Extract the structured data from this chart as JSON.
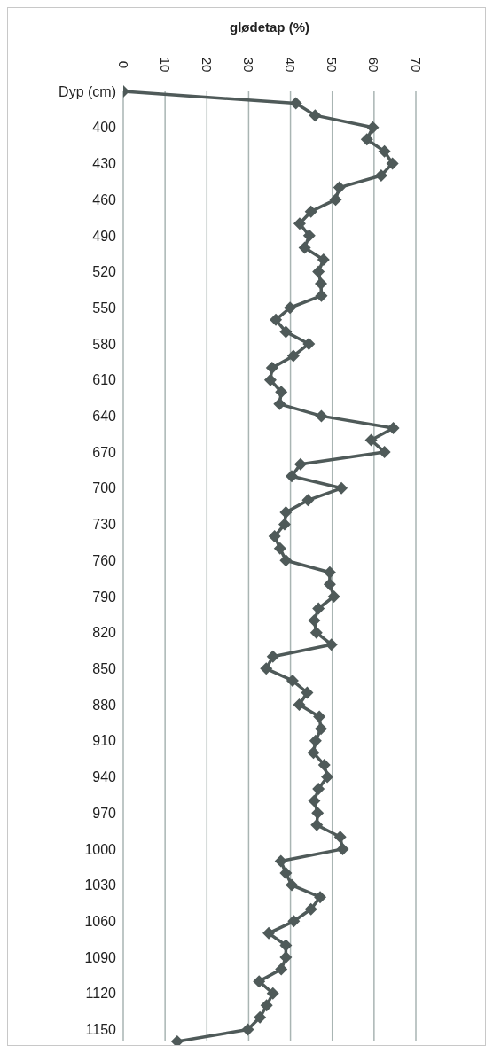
{
  "chart_data": {
    "type": "line",
    "orientation": "horizontal",
    "xlabel": "glødetap (%)",
    "categories": [
      "Dyp (cm)",
      null,
      null,
      "400",
      null,
      null,
      "430",
      null,
      null,
      "460",
      null,
      null,
      "490",
      null,
      null,
      "520",
      null,
      null,
      "550",
      null,
      null,
      "580",
      null,
      null,
      "610",
      null,
      null,
      "640",
      null,
      null,
      "670",
      null,
      null,
      "700",
      null,
      null,
      "730",
      null,
      null,
      "760",
      null,
      null,
      "790",
      null,
      null,
      "820",
      null,
      null,
      "850",
      null,
      null,
      "880",
      null,
      null,
      "910",
      null,
      null,
      "940",
      null,
      null,
      "970",
      null,
      null,
      "1000",
      null,
      null,
      "1030",
      null,
      null,
      "1060",
      null,
      null,
      "1090",
      null,
      null,
      "1120",
      null,
      null,
      "1150",
      null
    ],
    "series": [
      {
        "color": "#4f5a59",
        "values": [
          0,
          41.3,
          45.9,
          59.7,
          58.3,
          62.5,
          64.4,
          61.7,
          51.7,
          50.8,
          44.9,
          42.2,
          44.5,
          43.4,
          47.9,
          46.7,
          47.3,
          47.4,
          39.9,
          36.5,
          38.9,
          44.4,
          40.7,
          35.6,
          35.2,
          37.8,
          37.4,
          47.4,
          64.6,
          59.3,
          62.5,
          42.4,
          40.3,
          52.2,
          44.2,
          38.9,
          38.6,
          36.2,
          37.5,
          38.9,
          49.4,
          49.4,
          50.4,
          46.7,
          45.7,
          46.2,
          49.8,
          35.8,
          34.2,
          40.5,
          44,
          42.1,
          46.9,
          47.3,
          46,
          45.5,
          48.1,
          48.8,
          46.7,
          45.7,
          46.5,
          46.3,
          51.9,
          52.5,
          37.7,
          38.9,
          40.3,
          47.1,
          44.9,
          40.8,
          34.8,
          38.9,
          38.9,
          37.8,
          32.5,
          35.8,
          34.3,
          32.7,
          29.8,
          12.9
        ]
      }
    ],
    "xlim": [
      0,
      70
    ],
    "xticks": [
      0,
      10,
      20,
      30,
      40,
      50,
      60,
      70
    ],
    "grid": "x",
    "marker": "diamond",
    "line_style": "solid"
  }
}
